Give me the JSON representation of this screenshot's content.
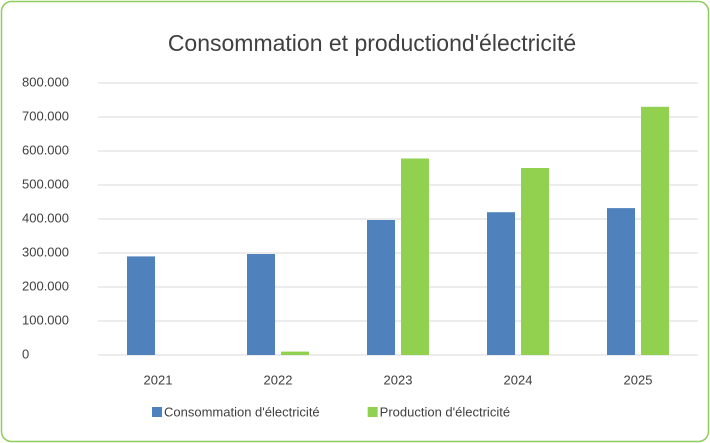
{
  "chart_data": {
    "type": "bar",
    "title": "Consommation et productiond'électricité",
    "categories": [
      "2021",
      "2022",
      "2023",
      "2024",
      "2025"
    ],
    "series": [
      {
        "name": "Consommation d'électricité",
        "color": "#4f81bd",
        "values": [
          290000,
          297000,
          397000,
          420000,
          432000
        ]
      },
      {
        "name": "Production d'électricité",
        "color": "#92d050",
        "values": [
          0,
          10000,
          578000,
          550000,
          730000
        ]
      }
    ],
    "ylim": [
      0,
      800000
    ],
    "yticks": [
      0,
      {
        "value": 100000,
        "label": "100.000"
      },
      {
        "value": 200000,
        "label": "200.000"
      },
      {
        "value": 300000,
        "label": "300.000"
      },
      {
        "value": 400000,
        "label": "400.000"
      },
      {
        "value": 500000,
        "label": "500.000"
      },
      {
        "value": 600000,
        "label": "600.000"
      },
      {
        "value": 700000,
        "label": "700.000"
      },
      {
        "value": 800000,
        "label": "800.000"
      }
    ],
    "grid": true,
    "legend": "bottom"
  }
}
